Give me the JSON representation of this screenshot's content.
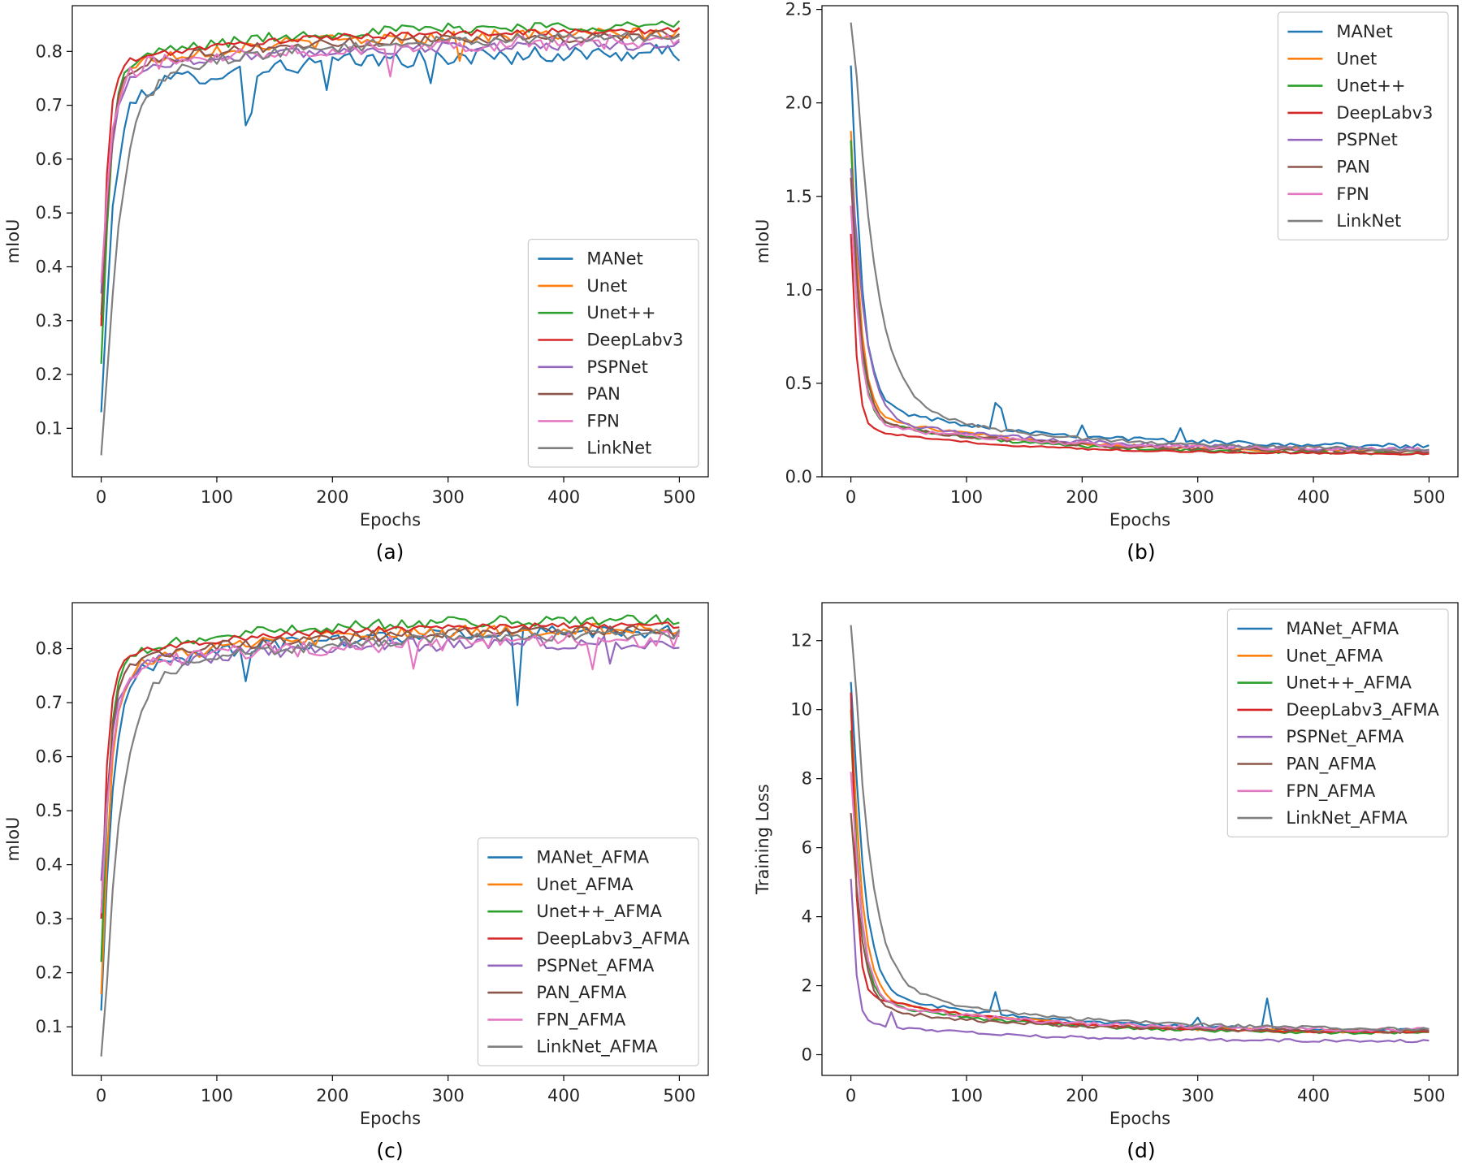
{
  "colors": {
    "series": [
      "#1f77b4",
      "#ff7f0e",
      "#2ca02c",
      "#d62728",
      "#9467bd",
      "#8c564b",
      "#e377c2",
      "#7f7f7f"
    ]
  },
  "chart_data": [
    {
      "type": "line",
      "panel": "(a)",
      "xlabel": "Epochs",
      "ylabel": "mIoU",
      "xlim": [
        -25,
        525
      ],
      "ylim": [
        0.01,
        0.885
      ],
      "xticks": [
        0,
        100,
        200,
        300,
        400,
        500
      ],
      "yticks": [
        0.1,
        0.2,
        0.3,
        0.4,
        0.5,
        0.6,
        0.7,
        0.8
      ],
      "legend_position": "lower-right",
      "series": [
        {
          "name": "MANet",
          "start": 0.13,
          "end": 0.8,
          "rate": 0.11,
          "tau": 150,
          "noise": 0.016,
          "spikes": [
            [
              125,
              -0.1
            ],
            [
              130,
              -0.08
            ],
            [
              195,
              -0.05
            ],
            [
              285,
              -0.06
            ]
          ]
        },
        {
          "name": "Unet",
          "start": 0.3,
          "end": 0.835,
          "rate": 0.14,
          "tau": 140,
          "noise": 0.012,
          "spikes": [
            [
              310,
              -0.05
            ]
          ]
        },
        {
          "name": "Unet++",
          "start": 0.22,
          "end": 0.85,
          "rate": 0.15,
          "tau": 130,
          "noise": 0.01,
          "spikes": []
        },
        {
          "name": "DeepLabv3",
          "start": 0.29,
          "end": 0.84,
          "rate": 0.2,
          "tau": 130,
          "noise": 0.006,
          "spikes": []
        },
        {
          "name": "PSPNet",
          "start": 0.35,
          "end": 0.815,
          "rate": 0.13,
          "tau": 150,
          "noise": 0.01,
          "spikes": []
        },
        {
          "name": "PAN",
          "start": 0.31,
          "end": 0.83,
          "rate": 0.14,
          "tau": 140,
          "noise": 0.01,
          "spikes": []
        },
        {
          "name": "FPN",
          "start": 0.37,
          "end": 0.82,
          "rate": 0.13,
          "tau": 150,
          "noise": 0.014,
          "spikes": [
            [
              250,
              -0.05
            ]
          ]
        },
        {
          "name": "LinkNet",
          "start": 0.05,
          "end": 0.83,
          "rate": 0.07,
          "tau": 140,
          "noise": 0.01,
          "spikes": []
        }
      ]
    },
    {
      "type": "line",
      "panel": "(b)",
      "xlabel": "Epochs",
      "ylabel": "mIoU",
      "xlim": [
        -25,
        525
      ],
      "ylim": [
        0,
        2.52
      ],
      "xticks": [
        0,
        100,
        200,
        300,
        400,
        500
      ],
      "yticks": [
        0.0,
        0.5,
        1.0,
        1.5,
        2.0,
        2.5
      ],
      "legend_position": "upper-right",
      "series": [
        {
          "name": "MANet",
          "start": 2.2,
          "end": 0.155,
          "rate": 0.12,
          "tau": 150,
          "noise": 0.012,
          "spikes": [
            [
              125,
              0.14
            ],
            [
              130,
              0.1
            ],
            [
              200,
              0.06
            ],
            [
              285,
              0.07
            ]
          ]
        },
        {
          "name": "Unet",
          "start": 1.85,
          "end": 0.13,
          "rate": 0.14,
          "tau": 140,
          "noise": 0.01,
          "spikes": []
        },
        {
          "name": "Unet++",
          "start": 1.8,
          "end": 0.12,
          "rate": 0.16,
          "tau": 130,
          "noise": 0.008,
          "spikes": []
        },
        {
          "name": "DeepLabv3",
          "start": 1.3,
          "end": 0.12,
          "rate": 0.22,
          "tau": 130,
          "noise": 0.005,
          "spikes": []
        },
        {
          "name": "PSPNet",
          "start": 1.65,
          "end": 0.14,
          "rate": 0.09,
          "tau": 150,
          "noise": 0.012,
          "spikes": []
        },
        {
          "name": "PAN",
          "start": 1.6,
          "end": 0.13,
          "rate": 0.13,
          "tau": 140,
          "noise": 0.009,
          "spikes": []
        },
        {
          "name": "FPN",
          "start": 1.45,
          "end": 0.14,
          "rate": 0.14,
          "tau": 140,
          "noise": 0.012,
          "spikes": []
        },
        {
          "name": "LinkNet",
          "start": 2.43,
          "end": 0.14,
          "rate": 0.055,
          "tau": 140,
          "noise": 0.01,
          "spikes": []
        }
      ]
    },
    {
      "type": "line",
      "panel": "(c)",
      "xlabel": "Epochs",
      "ylabel": "mIoU",
      "xlim": [
        -25,
        525
      ],
      "ylim": [
        0.01,
        0.885
      ],
      "xticks": [
        0,
        100,
        200,
        300,
        400,
        500
      ],
      "yticks": [
        0.1,
        0.2,
        0.3,
        0.4,
        0.5,
        0.6,
        0.7,
        0.8
      ],
      "legend_position": "lower-right",
      "series": [
        {
          "name": "MANet_AFMA",
          "start": 0.13,
          "end": 0.835,
          "rate": 0.12,
          "tau": 140,
          "noise": 0.012,
          "spikes": [
            [
              125,
              -0.05
            ],
            [
              360,
              -0.13
            ]
          ]
        },
        {
          "name": "Unet_AFMA",
          "start": 0.16,
          "end": 0.84,
          "rate": 0.14,
          "tau": 140,
          "noise": 0.012,
          "spikes": []
        },
        {
          "name": "Unet++_AFMA",
          "start": 0.22,
          "end": 0.855,
          "rate": 0.16,
          "tau": 120,
          "noise": 0.01,
          "spikes": []
        },
        {
          "name": "DeepLabv3_AFMA",
          "start": 0.3,
          "end": 0.845,
          "rate": 0.2,
          "tau": 130,
          "noise": 0.006,
          "spikes": []
        },
        {
          "name": "PSPNet_AFMA",
          "start": 0.37,
          "end": 0.815,
          "rate": 0.13,
          "tau": 150,
          "noise": 0.014,
          "spikes": [
            [
              440,
              -0.04
            ]
          ]
        },
        {
          "name": "PAN_AFMA",
          "start": 0.31,
          "end": 0.835,
          "rate": 0.14,
          "tau": 140,
          "noise": 0.01,
          "spikes": []
        },
        {
          "name": "FPN_AFMA",
          "start": 0.31,
          "end": 0.82,
          "rate": 0.13,
          "tau": 150,
          "noise": 0.016,
          "spikes": [
            [
              270,
              -0.05
            ],
            [
              425,
              -0.04
            ]
          ]
        },
        {
          "name": "LinkNet_AFMA",
          "start": 0.045,
          "end": 0.83,
          "rate": 0.07,
          "tau": 140,
          "noise": 0.01,
          "spikes": []
        }
      ]
    },
    {
      "type": "line",
      "panel": "(d)",
      "xlabel": "Epochs",
      "ylabel": "Training Loss",
      "xlim": [
        -25,
        525
      ],
      "ylim": [
        -0.6,
        13.1
      ],
      "xticks": [
        0,
        100,
        200,
        300,
        400,
        500
      ],
      "yticks": [
        0,
        2,
        4,
        6,
        8,
        10,
        12
      ],
      "legend_position": "upper-right",
      "series": [
        {
          "name": "MANet_AFMA",
          "start": 10.8,
          "end": 0.65,
          "rate": 0.1,
          "tau": 150,
          "noise": 0.05,
          "spikes": [
            [
              125,
              0.6
            ],
            [
              360,
              0.85
            ],
            [
              300,
              0.3
            ]
          ]
        },
        {
          "name": "Unet_AFMA",
          "start": 10.0,
          "end": 0.62,
          "rate": 0.12,
          "tau": 140,
          "noise": 0.05,
          "spikes": []
        },
        {
          "name": "Unet++_AFMA",
          "start": 9.4,
          "end": 0.6,
          "rate": 0.14,
          "tau": 130,
          "noise": 0.04,
          "spikes": []
        },
        {
          "name": "DeepLabv3_AFMA",
          "start": 10.5,
          "end": 0.62,
          "rate": 0.25,
          "tau": 130,
          "noise": 0.03,
          "spikes": []
        },
        {
          "name": "PSPNet_AFMA",
          "start": 5.1,
          "end": 0.38,
          "rate": 0.25,
          "tau": 130,
          "noise": 0.04,
          "spikes": [
            [
              35,
              0.4
            ]
          ]
        },
        {
          "name": "PAN_AFMA",
          "start": 7.0,
          "end": 0.65,
          "rate": 0.12,
          "tau": 140,
          "noise": 0.05,
          "spikes": []
        },
        {
          "name": "FPN_AFMA",
          "start": 8.2,
          "end": 0.7,
          "rate": 0.12,
          "tau": 140,
          "noise": 0.06,
          "spikes": []
        },
        {
          "name": "LinkNet_AFMA",
          "start": 12.45,
          "end": 0.7,
          "rate": 0.07,
          "tau": 140,
          "noise": 0.05,
          "spikes": []
        }
      ]
    }
  ]
}
